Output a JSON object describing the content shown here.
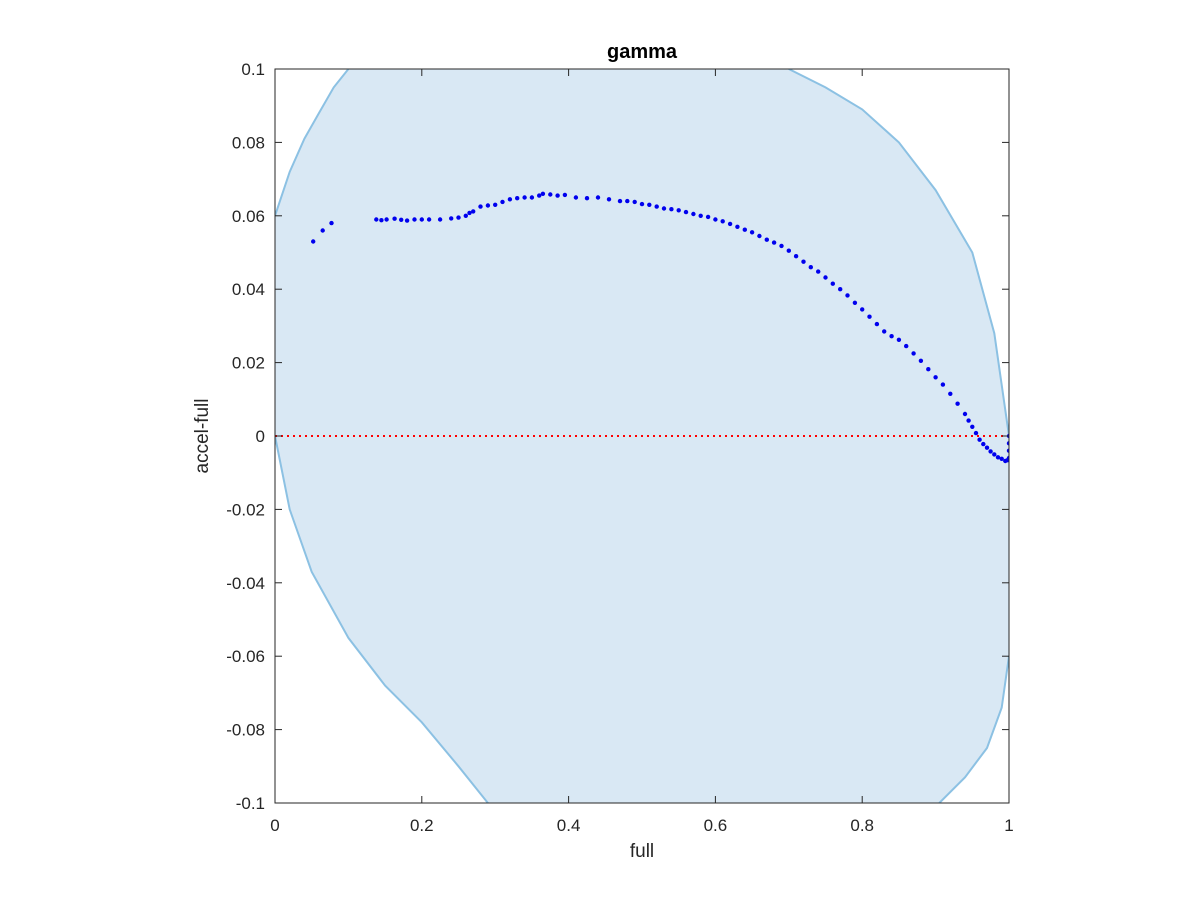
{
  "chart_data": {
    "type": "scatter",
    "title": "gamma",
    "xlabel": "full",
    "ylabel": "accel-full",
    "xlim": [
      0,
      1
    ],
    "ylim": [
      -0.1,
      0.1
    ],
    "xticks": [
      0,
      0.2,
      0.4,
      0.6,
      0.8,
      1
    ],
    "xtick_labels": [
      "0",
      "0.2",
      "0.4",
      "0.6",
      "0.8",
      "1"
    ],
    "yticks": [
      -0.1,
      -0.08,
      -0.06,
      -0.04,
      -0.02,
      0,
      0.02,
      0.04,
      0.06,
      0.08,
      0.1
    ],
    "ytick_labels": [
      "-0.1",
      "-0.08",
      "-0.06",
      "-0.04",
      "-0.02",
      "0",
      "0.02",
      "0.04",
      "0.06",
      "0.08",
      "0.1"
    ],
    "grid": false,
    "reference_line": {
      "y": 0,
      "color": "#ff0000",
      "style": "dotted"
    },
    "band": {
      "fill_color": "#d9e8f4",
      "edge_color": "#8cc1e3",
      "upper_left": [
        [
          0,
          0.06
        ],
        [
          0.02,
          0.072
        ],
        [
          0.04,
          0.081
        ],
        [
          0.06,
          0.088
        ],
        [
          0.08,
          0.095
        ],
        [
          0.1,
          0.1
        ]
      ],
      "upper_right": [
        [
          0.7,
          0.1
        ],
        [
          0.75,
          0.095
        ],
        [
          0.8,
          0.089
        ],
        [
          0.85,
          0.08
        ],
        [
          0.9,
          0.067
        ],
        [
          0.95,
          0.05
        ],
        [
          0.98,
          0.028
        ],
        [
          1.0,
          0.0
        ]
      ],
      "lower_left": [
        [
          0,
          0.0
        ],
        [
          0.02,
          -0.02
        ],
        [
          0.05,
          -0.037
        ],
        [
          0.1,
          -0.055
        ],
        [
          0.15,
          -0.068
        ],
        [
          0.2,
          -0.078
        ],
        [
          0.25,
          -0.09
        ],
        [
          0.29,
          -0.1
        ]
      ],
      "lower_right": [
        [
          0.905,
          -0.1
        ],
        [
          0.94,
          -0.093
        ],
        [
          0.97,
          -0.085
        ],
        [
          0.99,
          -0.074
        ],
        [
          1.0,
          -0.06
        ]
      ]
    },
    "series": [
      {
        "color": "#0000ee",
        "points": [
          [
            0.052,
            0.053
          ],
          [
            0.065,
            0.056
          ],
          [
            0.077,
            0.058
          ],
          [
            0.138,
            0.059
          ],
          [
            0.145,
            0.0588
          ],
          [
            0.152,
            0.059
          ],
          [
            0.163,
            0.0592
          ],
          [
            0.172,
            0.0589
          ],
          [
            0.18,
            0.0587
          ],
          [
            0.19,
            0.059
          ],
          [
            0.2,
            0.059
          ],
          [
            0.21,
            0.059
          ],
          [
            0.225,
            0.059
          ],
          [
            0.24,
            0.0593
          ],
          [
            0.25,
            0.0595
          ],
          [
            0.26,
            0.06
          ],
          [
            0.265,
            0.0608
          ],
          [
            0.27,
            0.0612
          ],
          [
            0.28,
            0.0625
          ],
          [
            0.29,
            0.0628
          ],
          [
            0.3,
            0.063
          ],
          [
            0.31,
            0.0638
          ],
          [
            0.32,
            0.0645
          ],
          [
            0.33,
            0.0648
          ],
          [
            0.34,
            0.065
          ],
          [
            0.35,
            0.065
          ],
          [
            0.36,
            0.0655
          ],
          [
            0.365,
            0.066
          ],
          [
            0.375,
            0.0658
          ],
          [
            0.385,
            0.0655
          ],
          [
            0.395,
            0.0657
          ],
          [
            0.41,
            0.065
          ],
          [
            0.425,
            0.0648
          ],
          [
            0.44,
            0.065
          ],
          [
            0.455,
            0.0645
          ],
          [
            0.47,
            0.064
          ],
          [
            0.48,
            0.064
          ],
          [
            0.49,
            0.0638
          ],
          [
            0.5,
            0.0632
          ],
          [
            0.51,
            0.063
          ],
          [
            0.52,
            0.0625
          ],
          [
            0.53,
            0.062
          ],
          [
            0.54,
            0.0618
          ],
          [
            0.55,
            0.0615
          ],
          [
            0.56,
            0.061
          ],
          [
            0.57,
            0.0605
          ],
          [
            0.58,
            0.06
          ],
          [
            0.59,
            0.0597
          ],
          [
            0.6,
            0.059
          ],
          [
            0.61,
            0.0585
          ],
          [
            0.62,
            0.0578
          ],
          [
            0.63,
            0.057
          ],
          [
            0.64,
            0.0562
          ],
          [
            0.65,
            0.0555
          ],
          [
            0.66,
            0.0545
          ],
          [
            0.67,
            0.0535
          ],
          [
            0.68,
            0.0527
          ],
          [
            0.69,
            0.0518
          ],
          [
            0.7,
            0.0505
          ],
          [
            0.71,
            0.049
          ],
          [
            0.72,
            0.0475
          ],
          [
            0.73,
            0.046
          ],
          [
            0.74,
            0.0448
          ],
          [
            0.75,
            0.0432
          ],
          [
            0.76,
            0.0415
          ],
          [
            0.77,
            0.04
          ],
          [
            0.78,
            0.0383
          ],
          [
            0.79,
            0.0363
          ],
          [
            0.8,
            0.0345
          ],
          [
            0.81,
            0.0325
          ],
          [
            0.82,
            0.0305
          ],
          [
            0.83,
            0.0285
          ],
          [
            0.84,
            0.0272
          ],
          [
            0.85,
            0.0262
          ],
          [
            0.86,
            0.0245
          ],
          [
            0.87,
            0.0225
          ],
          [
            0.88,
            0.0205
          ],
          [
            0.89,
            0.0182
          ],
          [
            0.9,
            0.016
          ],
          [
            0.91,
            0.014
          ],
          [
            0.92,
            0.0115
          ],
          [
            0.93,
            0.0088
          ],
          [
            0.94,
            0.006
          ],
          [
            0.945,
            0.0042
          ],
          [
            0.95,
            0.0025
          ],
          [
            0.955,
            0.0008
          ],
          [
            0.96,
            -0.001
          ],
          [
            0.965,
            -0.0022
          ],
          [
            0.97,
            -0.0032
          ],
          [
            0.975,
            -0.0042
          ],
          [
            0.98,
            -0.005
          ],
          [
            0.985,
            -0.0058
          ],
          [
            0.99,
            -0.0062
          ],
          [
            0.995,
            -0.0068
          ],
          [
            0.998,
            -0.0066
          ],
          [
            1.0,
            -0.006
          ],
          [
            1.0,
            -0.004
          ],
          [
            1.0,
            -0.002
          ],
          [
            1.0,
            0.0
          ]
        ]
      }
    ]
  }
}
